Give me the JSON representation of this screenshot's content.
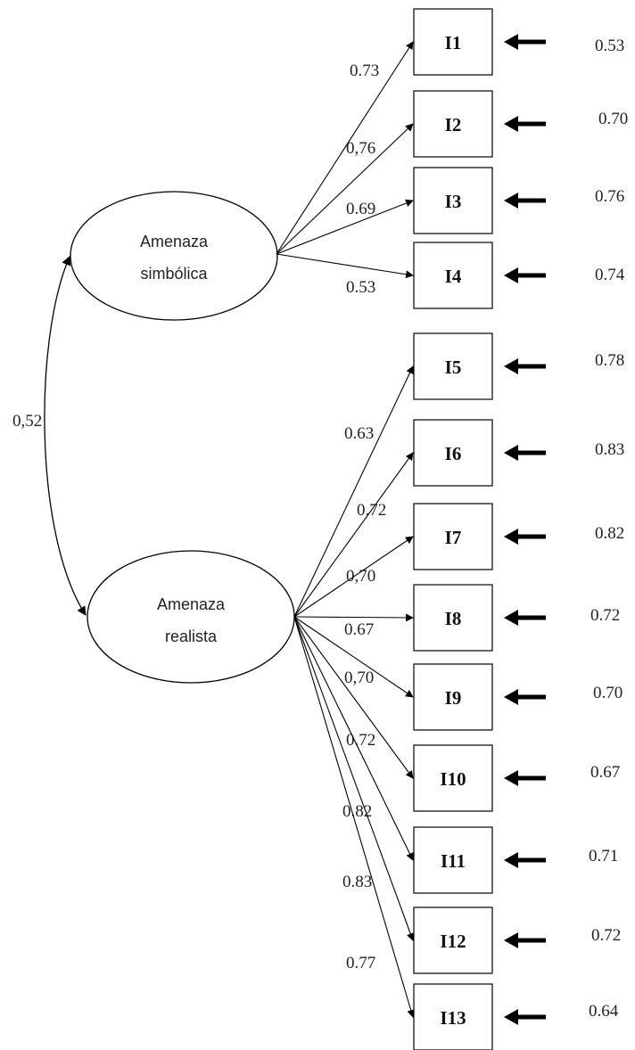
{
  "diagram": {
    "covariance": "0,52",
    "factors": [
      {
        "id": "simbolica",
        "label_lines": [
          "Amenaza",
          "simbólica"
        ],
        "items": [
          "I1",
          "I2",
          "I3",
          "I4"
        ],
        "loadings": [
          "0.73",
          "0,76",
          "0.69",
          "0.53"
        ]
      },
      {
        "id": "realista",
        "label_lines": [
          "Amenaza",
          "realista"
        ],
        "items": [
          "I5",
          "I6",
          "I7",
          "I8",
          "I9",
          "I10",
          "I11",
          "I12",
          "I13"
        ],
        "loadings": [
          "0.63",
          "0.72",
          "0,70",
          "0.67",
          "0,70",
          "0.72",
          "0.82",
          "0.83",
          "0.77"
        ]
      }
    ],
    "errors": [
      "0.53",
      "0.70",
      "0.76",
      "0.74",
      "0.78",
      "0.83",
      "0.82",
      "0.72",
      "0.70",
      "0.67",
      "0.71",
      "0.72",
      "0.64"
    ]
  }
}
